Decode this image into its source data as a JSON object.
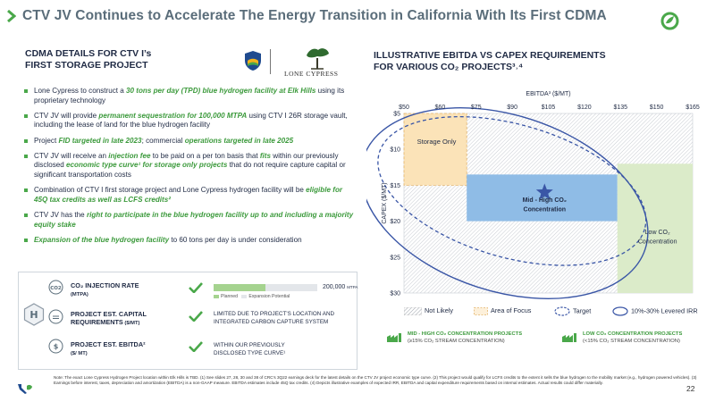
{
  "header": {
    "title": "CTV JV Continues to Accelerate The Energy Transition in California With Its First CDMA",
    "logo": {
      "small_text": "2045",
      "number_text": "2 45"
    }
  },
  "left": {
    "heading": "CDMA DETAILS FOR CTV I’s\nFIRST STORAGE PROJECT",
    "partner_logo_text": "LONE CYPRESS",
    "bullets": [
      [
        {
          "t": "Lone Cypress to construct a "
        },
        {
          "t": "30 tons per day (TPD) blue hydrogen facility at Elk Hills",
          "s": "hl"
        },
        {
          "t": " using its proprietary technology"
        }
      ],
      [
        {
          "t": "CTV JV will provide "
        },
        {
          "t": "permanent sequestration for 100,000 MTPA",
          "s": "hl"
        },
        {
          "t": " using CTV I 26R storage vault, including the lease of land for the blue hydrogen facility"
        }
      ],
      [
        {
          "t": "Project "
        },
        {
          "t": "FID targeted in late 2023",
          "s": "hl"
        },
        {
          "t": "; commercial "
        },
        {
          "t": "operations targeted in late 2025",
          "s": "hl"
        }
      ],
      [
        {
          "t": "CTV JV will receive an "
        },
        {
          "t": "injection fee",
          "s": "hl"
        },
        {
          "t": " to be paid on a per ton basis that "
        },
        {
          "t": "fits",
          "s": "hl"
        },
        {
          "t": " within our previously disclosed "
        },
        {
          "t": "economic type curve¹ for storage only projects",
          "s": "hl"
        },
        {
          "t": " that do not require capture capital or significant transportation costs"
        }
      ],
      [
        {
          "t": "Combination of CTV I first storage project and Lone Cypress hydrogen facility will be "
        },
        {
          "t": "eligible for 45Q tax credits as well as LCFS credits²",
          "s": "hl"
        }
      ],
      [
        {
          "t": "CTV JV has the "
        },
        {
          "t": "right to participate in the blue hydrogen facility up to and including a majority equity stake",
          "s": "hl"
        }
      ],
      [
        {
          "t": "Expansion of the blue hydrogen facility",
          "s": "hl"
        },
        {
          "t": " to 60 tons per day is under consideration"
        }
      ]
    ]
  },
  "metrics": {
    "rows": [
      {
        "label": "CO₂ INJECTION RATE",
        "sub": "(MTPA)"
      },
      {
        "label": "PROJECT EST. CAPITAL\nREQUIREMENTS",
        "sub": " ($/MT)"
      },
      {
        "label": "PROJECT EST. EBITDA²",
        "sub": "($/ MT)"
      }
    ],
    "bar": {
      "capacity_value": "200,000",
      "capacity_unit": "MTPA",
      "planned_fraction": 0.5,
      "legend_planned": "Planned",
      "legend_expansion": "Expansion Potential"
    },
    "desc_capital": "LIMITED DUE TO PROJECT’S LOCATION AND INTEGRATED CARBON CAPTURE SYSTEM",
    "desc_ebitda": "WITHIN OUR PREVIOUSLY DISCLOSED TYPE CURVE¹"
  },
  "chart_data": {
    "type": "scatter",
    "title": "ILLUSTRATIVE EBITDA VS CAPEX REQUIREMENTS\nFOR VARIOUS CO₂ PROJECTS³˒⁴",
    "xlabel": "EBITDA³ ($/MT)",
    "ylabel": "CAPEX ($/MT)",
    "x_ticks": [
      "$50",
      "$60",
      "$75",
      "$90",
      "$105",
      "$120",
      "$135",
      "$150",
      "$165"
    ],
    "y_ticks": [
      "$5",
      "$10",
      "$15",
      "$20",
      "$25",
      "$30"
    ],
    "xlim": [
      50,
      165
    ],
    "ylim": [
      5,
      30
    ],
    "y_inverted": true,
    "regions": [
      {
        "name": "Storage Only",
        "x": [
          50,
          75
        ],
        "y": [
          5,
          15
        ],
        "color": "#fbe3b8"
      },
      {
        "name": "Mid - High CO₂ Concentration",
        "x": [
          75,
          135
        ],
        "y": [
          13.5,
          20
        ],
        "color": "#8fbce6"
      },
      {
        "name": "Low CO₂ Concentration",
        "x": [
          135,
          165
        ],
        "y": [
          12,
          30
        ],
        "color": "#dbebc9"
      }
    ],
    "target_star": {
      "x": 106,
      "y": 16
    },
    "legend": [
      "Not Likely",
      "Area of Focus",
      "Target",
      "10%-30% Levered IRR"
    ],
    "colors": {
      "irr": "#3a56a6",
      "star": "#3a56a6",
      "accent": "#4aa84a"
    }
  },
  "chart_labels": {
    "storage_only": "Storage Only",
    "mid_high_line1": "Mid - High CO₂",
    "mid_high_line2": "Concentration",
    "low_line1": "Low CO₂",
    "low_line2": "Concentration"
  },
  "projects": {
    "mid_high": {
      "label": "MID - HIGH CO₂ CONCENTRATION PROJECTS",
      "sub": "(≥15% CO₂ STREAM CONCENTRATION)"
    },
    "low": {
      "label": "LOW CO₂ CONCENTRATION PROJECTS",
      "sub": "(<15% CO₂ STREAM CONCENTRATION)"
    }
  },
  "footer": {
    "note": "Note: The exact Lone Cypress Hydrogen Project location within Elk Hills is TBD. (1) See slides 27, 28, 30 and 38 of CRC’s 3Q22 earnings deck for the latest details on the CTV JV project economic type curve. (2) This project would qualify for LCFS credits to the extent it sells the blue hydrogen to the mobility market (e.g., hydrogen powered vehicles). (3) Earnings before interest, taxes, depreciation and amortization (EBITDA) is a non-GAAP measure. EBITDA estimates include 45Q tax credits. (4) Depicts illustrative examples of expected IRR, EBITDA and capital expenditure requirements based on internal estimates. Actual results could differ materially.",
    "page_number": "22"
  }
}
